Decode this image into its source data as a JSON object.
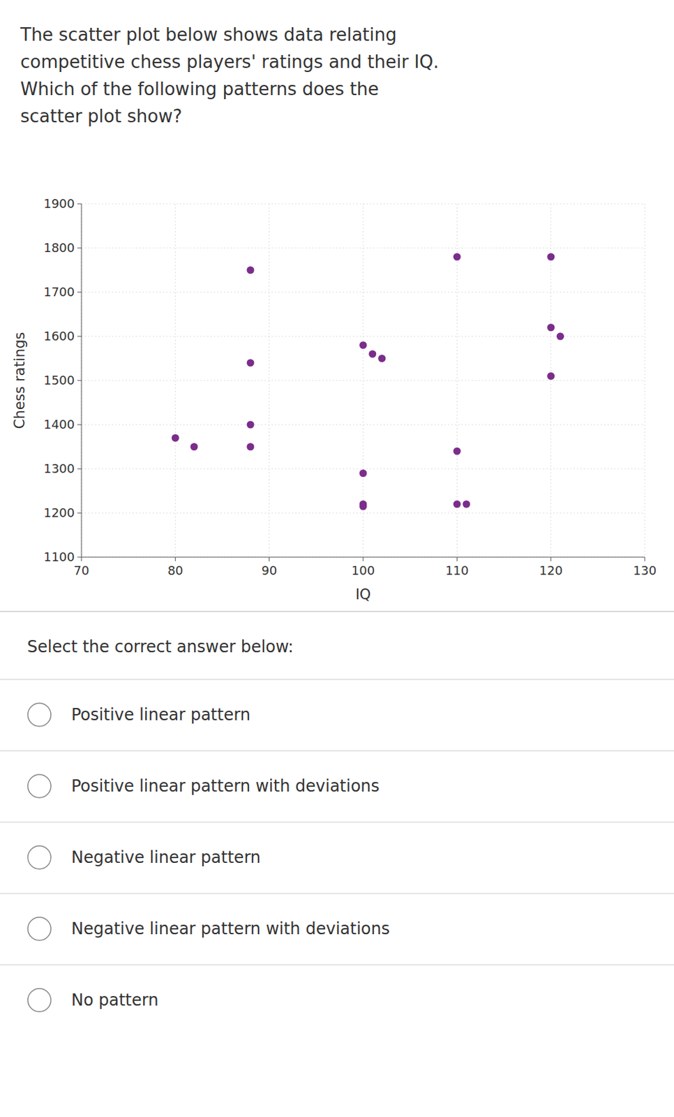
{
  "chart_data": {
    "type": "scatter",
    "title": "The scatter plot below shows data relating\ncompetitive chess players' ratings and their IQ.\nWhich of the following patterns does the\nscatter plot show?",
    "x": [
      80,
      82,
      88,
      88,
      88,
      88,
      100,
      101,
      102,
      100,
      100,
      100,
      110,
      110,
      110,
      111,
      120,
      120,
      121,
      120
    ],
    "y": [
      1370,
      1350,
      1750,
      1540,
      1400,
      1350,
      1580,
      1560,
      1550,
      1220,
      1215,
      1290,
      1780,
      1340,
      1220,
      1220,
      1780,
      1620,
      1600,
      1510
    ],
    "color": "#7B2D8B",
    "x_label": "IQ",
    "y_label": "Chess ratings",
    "xlim": [
      70,
      130
    ],
    "ylim": [
      1100,
      1900
    ],
    "xticks": [
      70,
      80,
      90,
      100,
      110,
      120,
      130
    ],
    "yticks": [
      1100,
      1200,
      1300,
      1400,
      1500,
      1600,
      1700,
      1800,
      1900
    ],
    "grid": true,
    "annotations": [
      "Select the correct answer below:",
      "Positive linear pattern",
      "Positive linear pattern with deviations",
      "Negative linear pattern",
      "Negative linear pattern with deviations",
      "No pattern"
    ]
  }
}
